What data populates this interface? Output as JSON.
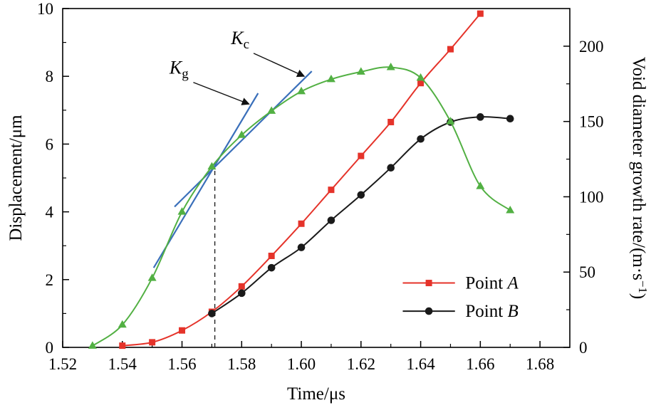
{
  "chart_data": {
    "type": "line",
    "title": "",
    "xlabel": "Time/μs",
    "ylabel_left": "Displacement/μm",
    "ylabel_right_pre": "Void diameter growth rate/(m·s",
    "ylabel_right_sup": "−1",
    "ylabel_right_post": ")",
    "x_range": [
      1.52,
      1.69
    ],
    "x_major_ticks": [
      1.52,
      1.54,
      1.56,
      1.58,
      1.6,
      1.62,
      1.64,
      1.66,
      1.68
    ],
    "x_tick_labels": [
      "1.52",
      "1.54",
      "1.56",
      "1.58",
      "1.60",
      "1.62",
      "1.64",
      "1.66",
      "1.68"
    ],
    "x_minor_ticks": [
      1.53,
      1.55,
      1.57,
      1.59,
      1.61,
      1.63,
      1.65,
      1.67
    ],
    "y_left_range": [
      0,
      10
    ],
    "y_left_major_ticks": [
      0,
      2,
      4,
      6,
      8,
      10
    ],
    "y_left_tick_labels": [
      "0",
      "2",
      "4",
      "6",
      "8",
      "10"
    ],
    "y_left_minor_ticks": [
      1,
      3,
      5,
      7,
      9
    ],
    "y_right_range": [
      0,
      225
    ],
    "y_right_major_ticks": [
      0,
      50,
      100,
      150,
      200
    ],
    "y_right_tick_labels": [
      "0",
      "50",
      "100",
      "150",
      "200"
    ],
    "y_right_minor_ticks": [
      25,
      75,
      125,
      175
    ],
    "grid": false,
    "series": [
      {
        "name": "Point A",
        "legend_pre": "Point ",
        "legend_italic": "A",
        "axis": "left",
        "color": "#e5332a",
        "marker": "square",
        "x": [
          1.54,
          1.55,
          1.56,
          1.57,
          1.58,
          1.59,
          1.6,
          1.61,
          1.62,
          1.63,
          1.64,
          1.65,
          1.66
        ],
        "y": [
          0.05,
          0.15,
          0.5,
          1.05,
          1.8,
          2.7,
          3.65,
          4.65,
          5.65,
          6.65,
          7.8,
          8.8,
          9.85
        ]
      },
      {
        "name": "Point B",
        "legend_pre": "Point ",
        "legend_italic": "B",
        "axis": "left",
        "color": "#1a1a1a",
        "marker": "circle",
        "x": [
          1.57,
          1.58,
          1.59,
          1.6,
          1.61,
          1.62,
          1.63,
          1.64,
          1.65,
          1.66,
          1.67
        ],
        "y": [
          1.0,
          1.6,
          2.35,
          2.95,
          3.75,
          4.5,
          5.3,
          6.15,
          6.65,
          6.8,
          6.75
        ]
      },
      {
        "name": "Void diameter growth rate",
        "axis": "right",
        "color": "#52b043",
        "marker": "triangle",
        "x": [
          1.53,
          1.54,
          1.55,
          1.56,
          1.57,
          1.58,
          1.59,
          1.6,
          1.61,
          1.62,
          1.63,
          1.64,
          1.65,
          1.66,
          1.67
        ],
        "y": [
          1,
          15,
          46,
          90,
          120,
          141,
          157,
          170,
          178,
          183,
          186,
          179,
          150,
          107,
          91
        ]
      }
    ],
    "tangent_lines": [
      {
        "id": "Kg",
        "base": "K",
        "sub": "g",
        "color": "#3a6fba",
        "x1": 1.5505,
        "y1": 2.35,
        "x2": 1.5855,
        "y2": 7.5,
        "label_x": 1.559,
        "label_y": 8.08,
        "arrow_x1": 1.5638,
        "arrow_y1": 7.82,
        "arrow_x2": 1.5825,
        "arrow_y2": 7.18
      },
      {
        "id": "Kc",
        "base": "K",
        "sub": "c",
        "color": "#3a6fba",
        "x1": 1.5575,
        "y1": 4.15,
        "x2": 1.6035,
        "y2": 8.15,
        "label_x": 1.5795,
        "label_y": 8.95,
        "arrow_x1": 1.584,
        "arrow_y1": 8.68,
        "arrow_x2": 1.601,
        "arrow_y2": 8.0
      }
    ],
    "dashed_line": {
      "x": 1.571,
      "y_from": 0,
      "y_to": 5.42
    },
    "legend": {
      "line_x1": 1.634,
      "line_x2": 1.6515,
      "text_x": 1.655,
      "entries": [
        {
          "series": 0,
          "y": 1.9
        },
        {
          "series": 1,
          "y": 1.07
        }
      ]
    },
    "colors": {
      "axis": "#000000",
      "annotation_arrow": "#111111",
      "dashed": "#222222"
    }
  }
}
